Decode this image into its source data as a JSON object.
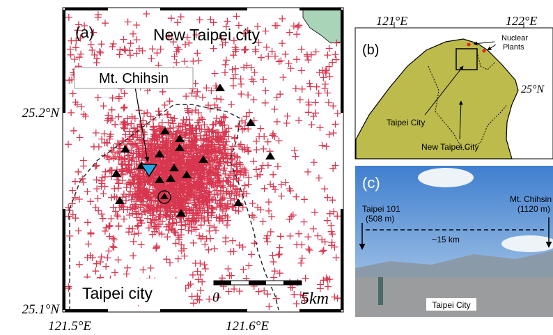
{
  "panel_a": {
    "label": "(a)",
    "north_label": "New Taipei city",
    "peak_label": "Mt. Chihsin",
    "south_label": "Taipei city",
    "scale_start": "0",
    "scale_end": "5km",
    "lat_ticks": [
      "25.2°N",
      "25.1°N"
    ],
    "lon_ticks": [
      "121.5°E",
      "121.6°E"
    ]
  },
  "panel_b": {
    "label": "(b)",
    "lon_ticks": [
      "121°E",
      "122°E"
    ],
    "lat_tick": "25°N",
    "nuclear_label": [
      "Nuclear",
      "Plants"
    ],
    "taipei_label": "Taipei City",
    "new_taipei_label": "New Taipei City"
  },
  "panel_c": {
    "label": "(c)",
    "left_peak": [
      "Taipei 101",
      "(508 m)"
    ],
    "right_peak": [
      "Mt. Chihsin",
      "(1120 m)"
    ],
    "distance": "~15 km",
    "city_label": "Taipei City"
  }
}
